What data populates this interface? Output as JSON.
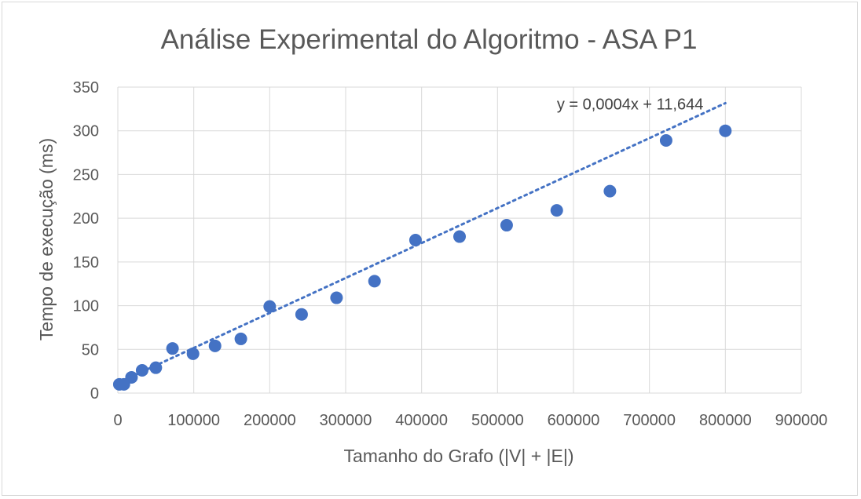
{
  "chart_data": {
    "type": "scatter",
    "title": "Análise Experimental do Algoritmo - ASA P1",
    "xlabel": "Tamanho do Grafo (|V| + |E|)",
    "ylabel": "Tempo de execução (ms)",
    "xlim": [
      0,
      900000
    ],
    "ylim": [
      0,
      350
    ],
    "x_ticks": [
      "0",
      "100000",
      "200000",
      "300000",
      "400000",
      "500000",
      "600000",
      "700000",
      "800000",
      "900000"
    ],
    "y_ticks": [
      "0",
      "50",
      "100",
      "150",
      "200",
      "250",
      "300",
      "350"
    ],
    "grid": true,
    "marker_color": "#4472c4",
    "trendline": {
      "type": "linear",
      "slope": 0.0004,
      "intercept": 11.644,
      "equation": "y = 0,0004x + 11,644",
      "style": "dotted",
      "color": "#4472c4"
    },
    "points": [
      {
        "x": 2000,
        "y": 10
      },
      {
        "x": 8000,
        "y": 10
      },
      {
        "x": 18000,
        "y": 18
      },
      {
        "x": 32000,
        "y": 26
      },
      {
        "x": 50000,
        "y": 29
      },
      {
        "x": 72000,
        "y": 51
      },
      {
        "x": 99000,
        "y": 45
      },
      {
        "x": 128000,
        "y": 54
      },
      {
        "x": 162000,
        "y": 62
      },
      {
        "x": 200000,
        "y": 99
      },
      {
        "x": 242000,
        "y": 90
      },
      {
        "x": 288000,
        "y": 109
      },
      {
        "x": 338000,
        "y": 128
      },
      {
        "x": 392000,
        "y": 175
      },
      {
        "x": 450000,
        "y": 179
      },
      {
        "x": 512000,
        "y": 192
      },
      {
        "x": 578000,
        "y": 209
      },
      {
        "x": 648000,
        "y": 231
      },
      {
        "x": 722000,
        "y": 289
      },
      {
        "x": 800000,
        "y": 300
      }
    ]
  }
}
